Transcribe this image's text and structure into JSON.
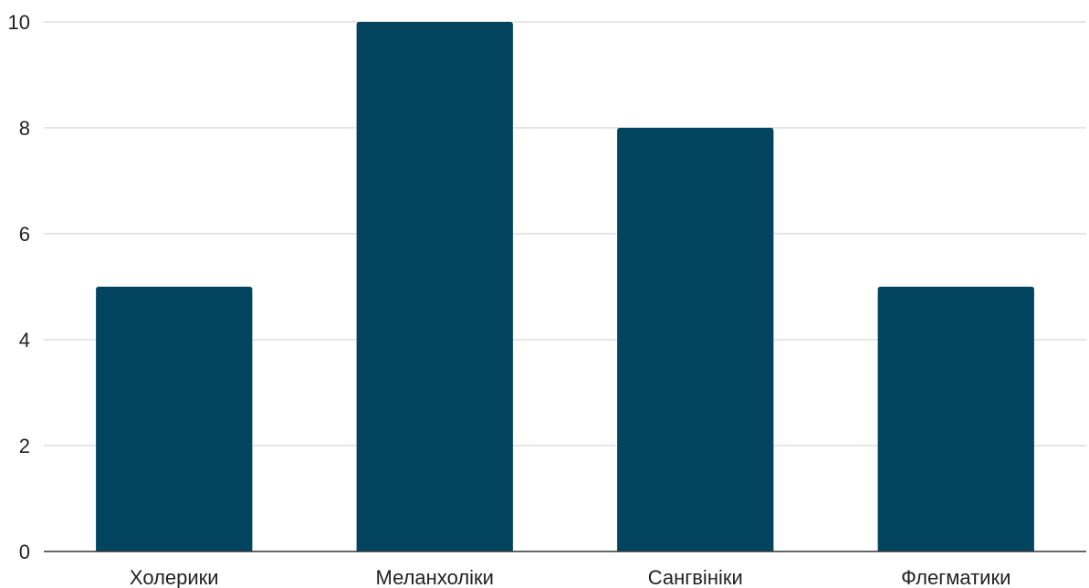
{
  "chart_data": {
    "type": "bar",
    "categories": [
      "Холерики",
      "Меланхоліки",
      "Сангвініки",
      "Флегматики"
    ],
    "values": [
      5,
      10,
      8,
      5
    ],
    "title": "",
    "xlabel": "",
    "ylabel": "",
    "ylim": [
      0,
      10
    ],
    "yticks": [
      0,
      2,
      4,
      6,
      8,
      10
    ],
    "grid": true,
    "legend": "none",
    "colors": {
      "bar": "#02445f",
      "grid": "#cccccc",
      "axis": "#333333"
    }
  }
}
